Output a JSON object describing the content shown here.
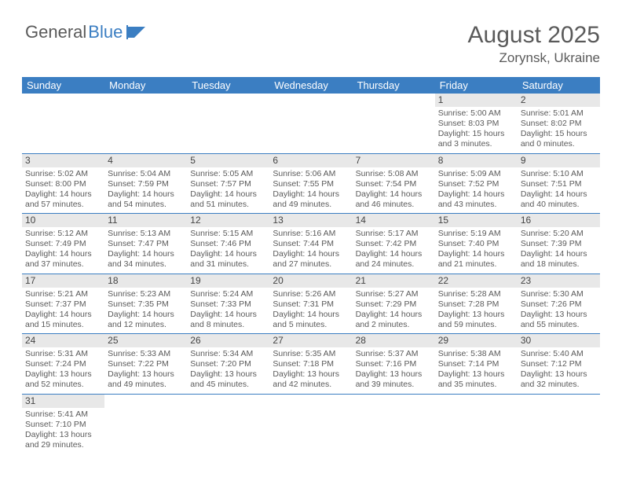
{
  "logo": {
    "text1": "General",
    "text2": "Blue"
  },
  "header": {
    "title": "August 2025",
    "location": "Zorynsk, Ukraine"
  },
  "colors": {
    "header_bg": "#3b7ec2",
    "header_text": "#ffffff",
    "daynum_bg": "#e8e8e8",
    "text": "#5a5a5a",
    "border": "#3b7ec2"
  },
  "weekdays": [
    "Sunday",
    "Monday",
    "Tuesday",
    "Wednesday",
    "Thursday",
    "Friday",
    "Saturday"
  ],
  "grid": [
    [
      null,
      null,
      null,
      null,
      null,
      {
        "n": "1",
        "sunrise": "Sunrise: 5:00 AM",
        "sunset": "Sunset: 8:03 PM",
        "daylight": "Daylight: 15 hours and 3 minutes."
      },
      {
        "n": "2",
        "sunrise": "Sunrise: 5:01 AM",
        "sunset": "Sunset: 8:02 PM",
        "daylight": "Daylight: 15 hours and 0 minutes."
      }
    ],
    [
      {
        "n": "3",
        "sunrise": "Sunrise: 5:02 AM",
        "sunset": "Sunset: 8:00 PM",
        "daylight": "Daylight: 14 hours and 57 minutes."
      },
      {
        "n": "4",
        "sunrise": "Sunrise: 5:04 AM",
        "sunset": "Sunset: 7:59 PM",
        "daylight": "Daylight: 14 hours and 54 minutes."
      },
      {
        "n": "5",
        "sunrise": "Sunrise: 5:05 AM",
        "sunset": "Sunset: 7:57 PM",
        "daylight": "Daylight: 14 hours and 51 minutes."
      },
      {
        "n": "6",
        "sunrise": "Sunrise: 5:06 AM",
        "sunset": "Sunset: 7:55 PM",
        "daylight": "Daylight: 14 hours and 49 minutes."
      },
      {
        "n": "7",
        "sunrise": "Sunrise: 5:08 AM",
        "sunset": "Sunset: 7:54 PM",
        "daylight": "Daylight: 14 hours and 46 minutes."
      },
      {
        "n": "8",
        "sunrise": "Sunrise: 5:09 AM",
        "sunset": "Sunset: 7:52 PM",
        "daylight": "Daylight: 14 hours and 43 minutes."
      },
      {
        "n": "9",
        "sunrise": "Sunrise: 5:10 AM",
        "sunset": "Sunset: 7:51 PM",
        "daylight": "Daylight: 14 hours and 40 minutes."
      }
    ],
    [
      {
        "n": "10",
        "sunrise": "Sunrise: 5:12 AM",
        "sunset": "Sunset: 7:49 PM",
        "daylight": "Daylight: 14 hours and 37 minutes."
      },
      {
        "n": "11",
        "sunrise": "Sunrise: 5:13 AM",
        "sunset": "Sunset: 7:47 PM",
        "daylight": "Daylight: 14 hours and 34 minutes."
      },
      {
        "n": "12",
        "sunrise": "Sunrise: 5:15 AM",
        "sunset": "Sunset: 7:46 PM",
        "daylight": "Daylight: 14 hours and 31 minutes."
      },
      {
        "n": "13",
        "sunrise": "Sunrise: 5:16 AM",
        "sunset": "Sunset: 7:44 PM",
        "daylight": "Daylight: 14 hours and 27 minutes."
      },
      {
        "n": "14",
        "sunrise": "Sunrise: 5:17 AM",
        "sunset": "Sunset: 7:42 PM",
        "daylight": "Daylight: 14 hours and 24 minutes."
      },
      {
        "n": "15",
        "sunrise": "Sunrise: 5:19 AM",
        "sunset": "Sunset: 7:40 PM",
        "daylight": "Daylight: 14 hours and 21 minutes."
      },
      {
        "n": "16",
        "sunrise": "Sunrise: 5:20 AM",
        "sunset": "Sunset: 7:39 PM",
        "daylight": "Daylight: 14 hours and 18 minutes."
      }
    ],
    [
      {
        "n": "17",
        "sunrise": "Sunrise: 5:21 AM",
        "sunset": "Sunset: 7:37 PM",
        "daylight": "Daylight: 14 hours and 15 minutes."
      },
      {
        "n": "18",
        "sunrise": "Sunrise: 5:23 AM",
        "sunset": "Sunset: 7:35 PM",
        "daylight": "Daylight: 14 hours and 12 minutes."
      },
      {
        "n": "19",
        "sunrise": "Sunrise: 5:24 AM",
        "sunset": "Sunset: 7:33 PM",
        "daylight": "Daylight: 14 hours and 8 minutes."
      },
      {
        "n": "20",
        "sunrise": "Sunrise: 5:26 AM",
        "sunset": "Sunset: 7:31 PM",
        "daylight": "Daylight: 14 hours and 5 minutes."
      },
      {
        "n": "21",
        "sunrise": "Sunrise: 5:27 AM",
        "sunset": "Sunset: 7:29 PM",
        "daylight": "Daylight: 14 hours and 2 minutes."
      },
      {
        "n": "22",
        "sunrise": "Sunrise: 5:28 AM",
        "sunset": "Sunset: 7:28 PM",
        "daylight": "Daylight: 13 hours and 59 minutes."
      },
      {
        "n": "23",
        "sunrise": "Sunrise: 5:30 AM",
        "sunset": "Sunset: 7:26 PM",
        "daylight": "Daylight: 13 hours and 55 minutes."
      }
    ],
    [
      {
        "n": "24",
        "sunrise": "Sunrise: 5:31 AM",
        "sunset": "Sunset: 7:24 PM",
        "daylight": "Daylight: 13 hours and 52 minutes."
      },
      {
        "n": "25",
        "sunrise": "Sunrise: 5:33 AM",
        "sunset": "Sunset: 7:22 PM",
        "daylight": "Daylight: 13 hours and 49 minutes."
      },
      {
        "n": "26",
        "sunrise": "Sunrise: 5:34 AM",
        "sunset": "Sunset: 7:20 PM",
        "daylight": "Daylight: 13 hours and 45 minutes."
      },
      {
        "n": "27",
        "sunrise": "Sunrise: 5:35 AM",
        "sunset": "Sunset: 7:18 PM",
        "daylight": "Daylight: 13 hours and 42 minutes."
      },
      {
        "n": "28",
        "sunrise": "Sunrise: 5:37 AM",
        "sunset": "Sunset: 7:16 PM",
        "daylight": "Daylight: 13 hours and 39 minutes."
      },
      {
        "n": "29",
        "sunrise": "Sunrise: 5:38 AM",
        "sunset": "Sunset: 7:14 PM",
        "daylight": "Daylight: 13 hours and 35 minutes."
      },
      {
        "n": "30",
        "sunrise": "Sunrise: 5:40 AM",
        "sunset": "Sunset: 7:12 PM",
        "daylight": "Daylight: 13 hours and 32 minutes."
      }
    ],
    [
      {
        "n": "31",
        "sunrise": "Sunrise: 5:41 AM",
        "sunset": "Sunset: 7:10 PM",
        "daylight": "Daylight: 13 hours and 29 minutes."
      },
      null,
      null,
      null,
      null,
      null,
      null
    ]
  ]
}
